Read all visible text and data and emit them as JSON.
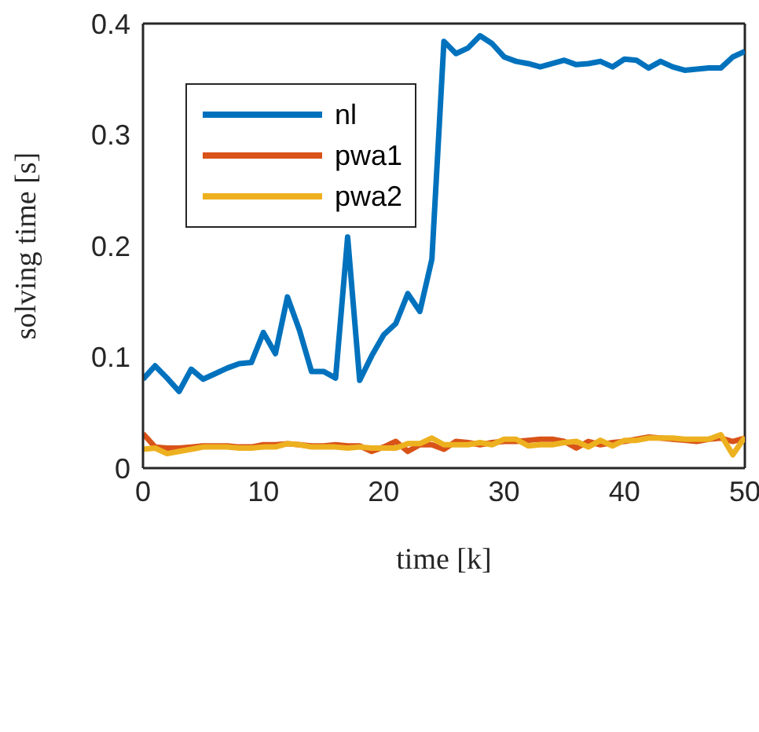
{
  "chart_data": {
    "type": "line",
    "xlabel": "time [k]",
    "ylabel": "solving time [s]",
    "x": [
      0,
      1,
      2,
      3,
      4,
      5,
      6,
      7,
      8,
      9,
      10,
      11,
      12,
      13,
      14,
      15,
      16,
      17,
      18,
      19,
      20,
      21,
      22,
      23,
      24,
      25,
      26,
      27,
      28,
      29,
      30,
      31,
      32,
      33,
      34,
      35,
      36,
      37,
      38,
      39,
      40,
      41,
      42,
      43,
      44,
      45,
      46,
      47,
      48,
      49,
      50
    ],
    "series": [
      {
        "name": "nl",
        "color": "#0072bd",
        "values": [
          0.08,
          0.092,
          0.081,
          0.069,
          0.089,
          0.08,
          0.085,
          0.09,
          0.094,
          0.095,
          0.122,
          0.103,
          0.154,
          0.124,
          0.087,
          0.087,
          0.081,
          0.208,
          0.079,
          0.101,
          0.12,
          0.13,
          0.157,
          0.141,
          0.188,
          0.384,
          0.373,
          0.378,
          0.389,
          0.382,
          0.37,
          0.366,
          0.364,
          0.361,
          0.364,
          0.367,
          0.363,
          0.364,
          0.366,
          0.361,
          0.368,
          0.367,
          0.36,
          0.366,
          0.361,
          0.358,
          0.359,
          0.36,
          0.36,
          0.37,
          0.375
        ]
      },
      {
        "name": "pwa1",
        "color": "#d95319",
        "values": [
          0.031,
          0.019,
          0.018,
          0.018,
          0.019,
          0.02,
          0.02,
          0.02,
          0.019,
          0.019,
          0.021,
          0.021,
          0.022,
          0.021,
          0.02,
          0.02,
          0.021,
          0.02,
          0.02,
          0.015,
          0.019,
          0.024,
          0.015,
          0.021,
          0.021,
          0.017,
          0.024,
          0.023,
          0.021,
          0.023,
          0.024,
          0.024,
          0.025,
          0.026,
          0.026,
          0.024,
          0.018,
          0.024,
          0.021,
          0.023,
          0.024,
          0.026,
          0.028,
          0.027,
          0.026,
          0.025,
          0.024,
          0.026,
          0.027,
          0.024,
          0.027
        ]
      },
      {
        "name": "pwa2",
        "color": "#edb120",
        "values": [
          0.017,
          0.018,
          0.013,
          0.015,
          0.017,
          0.019,
          0.019,
          0.019,
          0.018,
          0.018,
          0.019,
          0.019,
          0.022,
          0.021,
          0.019,
          0.019,
          0.019,
          0.018,
          0.019,
          0.018,
          0.018,
          0.018,
          0.022,
          0.022,
          0.027,
          0.021,
          0.021,
          0.021,
          0.023,
          0.021,
          0.026,
          0.026,
          0.02,
          0.021,
          0.021,
          0.023,
          0.024,
          0.019,
          0.025,
          0.02,
          0.025,
          0.025,
          0.027,
          0.027,
          0.027,
          0.026,
          0.026,
          0.026,
          0.03,
          0.012,
          0.028
        ]
      }
    ],
    "xlim": [
      0,
      50
    ],
    "xticks": [
      0,
      10,
      20,
      30,
      40,
      50
    ],
    "ylim": [
      0,
      0.4
    ],
    "yticks": [
      0,
      0.1,
      0.2,
      0.3,
      0.4
    ],
    "grid": false,
    "legend": "top left",
    "marker": "none",
    "line_style": "solid"
  }
}
